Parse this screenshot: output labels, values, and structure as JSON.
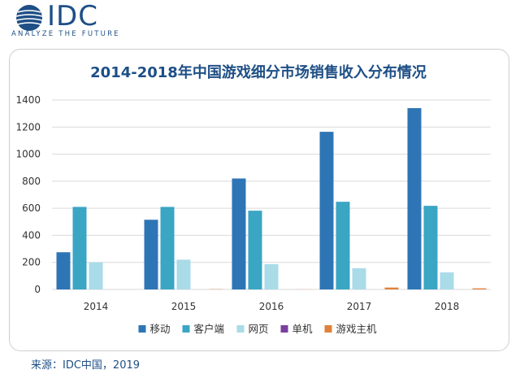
{
  "brand": {
    "name": "IDC",
    "tagline": "ANALYZE THE FUTURE"
  },
  "source": "来源：IDC中国，2019",
  "colors": {
    "brand": "#1e4f86",
    "mobile": "#2e75b6",
    "client": "#3ba5c4",
    "web": "#a9dbe8",
    "standalone": "#7b3f9e",
    "console": "#e0803a"
  },
  "chart_data": {
    "type": "bar",
    "title": "2014-2018年中国游戏细分市场销售收入分布情况",
    "categories": [
      "2014",
      "2015",
      "2016",
      "2017",
      "2018"
    ],
    "series": [
      {
        "name": "移动",
        "color": "#2e75b6",
        "values": [
          275,
          515,
          820,
          1165,
          1340
        ]
      },
      {
        "name": "客户端",
        "color": "#3ba5c4",
        "values": [
          610,
          610,
          582,
          648,
          618
        ]
      },
      {
        "name": "网页",
        "color": "#a9dbe8",
        "values": [
          200,
          220,
          187,
          157,
          126
        ]
      },
      {
        "name": "单机",
        "color": "#7b3f9e",
        "values": [
          0,
          0,
          0,
          0,
          0
        ]
      },
      {
        "name": "游戏主机",
        "color": "#e0803a",
        "values": [
          0,
          2,
          1,
          14,
          8
        ]
      }
    ],
    "ylim": [
      0,
      1400
    ],
    "yticks": [
      0,
      200,
      400,
      600,
      800,
      1000,
      1200,
      1400
    ],
    "grid": true,
    "legend": "bottom"
  }
}
